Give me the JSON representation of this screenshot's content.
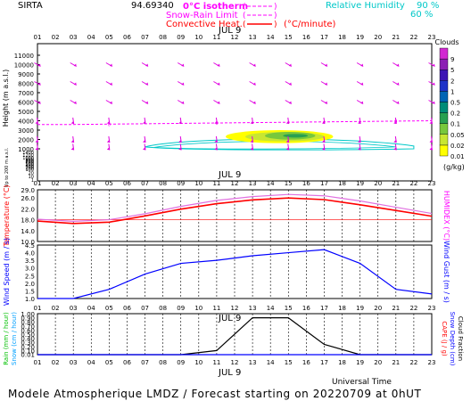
{
  "header": {
    "station": "SIRTA",
    "coords": "94.69340",
    "legend": {
      "isotherm": "0°C isotherm",
      "snow_rain": "Snow-Rain Limit",
      "convective": "Convective Heat.",
      "convective_unit": "(°C/minute)",
      "rh_label": "Relative Humidity",
      "rh_90": "90 %",
      "rh_60": "60 %"
    },
    "colors": {
      "isotherm": "#ff00ff",
      "snow_rain": "#ff00ff",
      "convective": "#ff0000",
      "rh_90": "#00c8c8",
      "rh_60": "#00c8c8"
    }
  },
  "hours": [
    "01",
    "02",
    "03",
    "04",
    "05",
    "06",
    "07",
    "08",
    "09",
    "10",
    "11",
    "12",
    "13",
    "14",
    "15",
    "16",
    "17",
    "18",
    "19",
    "20",
    "21",
    "22",
    "23"
  ],
  "date_label": "JUL  9",
  "x_axis_label": "Universal Time",
  "footer": "Modele Atmospherique LMDZ / Forecast starting on 20220709 at 0hUT",
  "chart_data": [
    {
      "type": "heatmap",
      "panel": "clouds-and-wind-profile",
      "ylabel": "Height  (m a.s.l.)",
      "ylabel_low": "Up to 200 m a.s.l.",
      "yticks_upper": [
        1000,
        2000,
        3000,
        4000,
        5000,
        6000,
        7000,
        8000,
        9000,
        10000,
        11000
      ],
      "yticks_lower": [
        100,
        200,
        300,
        400,
        500,
        600,
        700,
        800,
        900,
        1000,
        1200,
        1400
      ],
      "yticks_bottom": [
        20,
        10,
        1
      ],
      "colorbar": {
        "title": "Clouds",
        "unit": "(g/kg)",
        "levels": [
          "0.01",
          "0.02",
          "0.05",
          "0.1",
          "0.2",
          "0.5",
          "1",
          "2",
          "5",
          "9"
        ],
        "colors": [
          "#ffff00",
          "#c8e632",
          "#78c83c",
          "#28a050",
          "#008c78",
          "#0064b4",
          "#1e32c8",
          "#3c14b4",
          "#8c1eb4",
          "#d228d2"
        ]
      },
      "isotherm_height_m": [
        3600,
        3600,
        3600,
        3620,
        3640,
        3660,
        3680,
        3700,
        3720,
        3740,
        3760,
        3780,
        3800,
        3820,
        3840,
        3860,
        3880,
        3900,
        3920,
        3940,
        3960,
        3980,
        4000
      ],
      "cloud_layer": {
        "hours": [
          12,
          17
        ],
        "base_m": 1700,
        "top_m": 2900,
        "max_gkg": 0.1
      },
      "wind_heights_m": [
        10000,
        8000,
        6000,
        4000,
        2000,
        1200
      ],
      "wind_hours": [
        1,
        3,
        5,
        7,
        9,
        11,
        13,
        15,
        17,
        19,
        21,
        23
      ]
    },
    {
      "type": "line",
      "panel": "temperature",
      "ylabel": "Temperature  (°C)",
      "ylabel_right": "HUMIDEX  (°C)",
      "yticks": [
        "10.0",
        "14.0",
        "18.0",
        "22.0",
        "26.0",
        "29.0"
      ],
      "ylim": [
        10,
        29
      ],
      "series": [
        {
          "name": "Temperature",
          "color": "#ff0000",
          "x": [
            1,
            3,
            5,
            7,
            9,
            11,
            13,
            15,
            17,
            19,
            21,
            23
          ],
          "values": [
            17.5,
            16.6,
            17.1,
            19.4,
            21.9,
            23.9,
            25.3,
            26.0,
            25.4,
            23.5,
            21.4,
            19.3
          ]
        },
        {
          "name": "HUMIDEX",
          "color": "#e070e0",
          "x": [
            1,
            3,
            5,
            7,
            9,
            11,
            13,
            15,
            17,
            19,
            21,
            23
          ],
          "values": [
            18.2,
            17.4,
            18.0,
            20.2,
            22.9,
            25.1,
            26.5,
            27.3,
            26.8,
            24.9,
            22.6,
            20.3
          ]
        }
      ]
    },
    {
      "type": "line",
      "panel": "wind",
      "ylabel": "Wind Speed  (m / s)",
      "ylabel_right": "Wind Gust  (m / s)",
      "yticks": [
        "1.0",
        "1.5",
        "2.0",
        "2.5",
        "3.0",
        "3.5",
        "4.0",
        "4.5"
      ],
      "ylim": [
        1,
        4.5
      ],
      "series": [
        {
          "name": "Wind Speed",
          "color": "#0000ff",
          "x": [
            1,
            3,
            5,
            7,
            9,
            11,
            13,
            15,
            17,
            19,
            21,
            23
          ],
          "values": [
            1.0,
            1.0,
            1.6,
            2.6,
            3.3,
            3.5,
            3.8,
            4.0,
            4.2,
            3.3,
            1.6,
            1.3
          ]
        }
      ]
    },
    {
      "type": "line",
      "panel": "precipitation",
      "ylabel": "Rain (mm / hour)",
      "ylabel2": "Snow (cm / hour)",
      "ylabel_right": "CAPE (J / g)",
      "ylabel_right2": "Snow Depth (cm)",
      "ylabel_right3": "Cloud Fraction",
      "yticks": [
        "0.01",
        "0.10",
        "0.20",
        "0.30",
        "0.40",
        "0.50",
        "0.60",
        "0.70",
        "0.80",
        "0.90",
        "1.00"
      ],
      "ylim": [
        0,
        1
      ],
      "series": [
        {
          "name": "Cloud Fraction",
          "color": "#000000",
          "x": [
            1,
            3,
            5,
            7,
            9,
            11,
            13,
            15,
            17,
            19,
            21,
            23
          ],
          "values": [
            0,
            0,
            0,
            0,
            0,
            0.1,
            0.9,
            0.9,
            0.25,
            0,
            0,
            0
          ]
        },
        {
          "name": "Rain",
          "color": "#0000ff",
          "x": [
            1,
            3,
            5,
            7,
            9,
            11,
            13,
            15,
            17,
            19,
            21,
            23
          ],
          "values": [
            0,
            0,
            0,
            0,
            0,
            0,
            0,
            0,
            0,
            0,
            0,
            0
          ]
        }
      ]
    }
  ]
}
